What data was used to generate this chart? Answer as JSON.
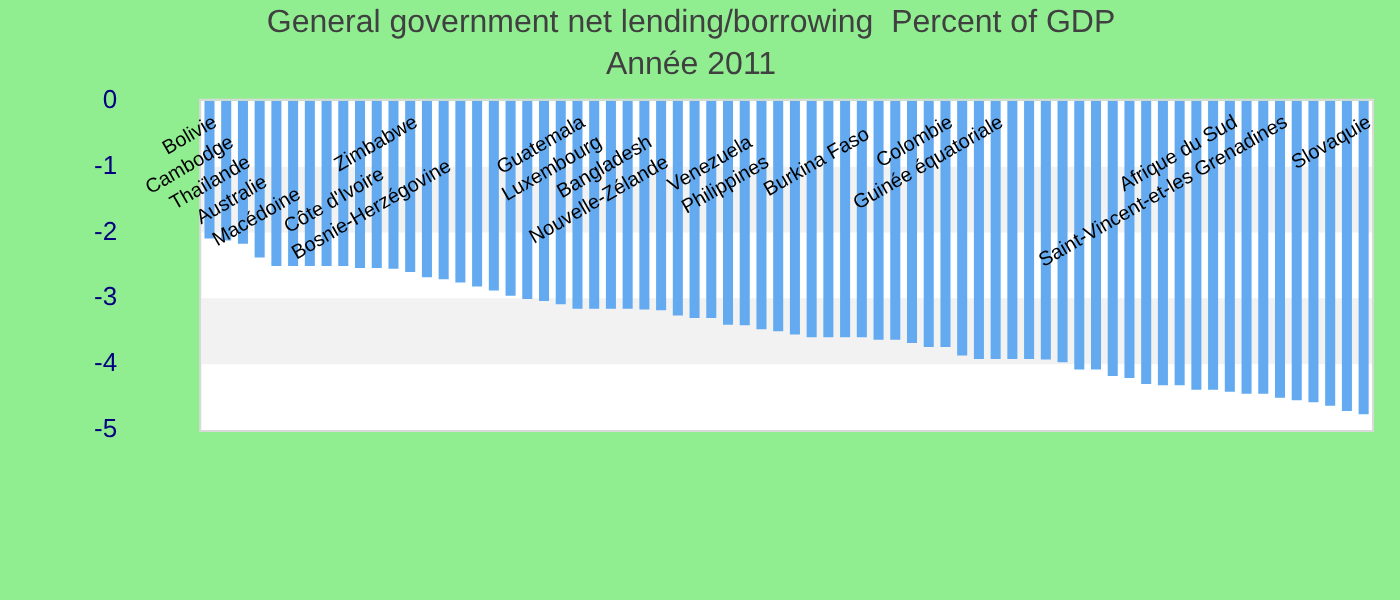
{
  "chart_data": {
    "type": "bar",
    "title": "General government net lending/borrowing  Percent of GDP",
    "subtitle": "Année 2011",
    "categories": [
      "Bolivie",
      "Cambodge",
      "Thaïlande",
      "Australie",
      null,
      "Macédoine",
      null,
      null,
      null,
      null,
      "Côte d'Ivoire",
      null,
      "Zimbabwe",
      null,
      "Bosnie-Herzégovine",
      null,
      null,
      null,
      null,
      null,
      null,
      null,
      "Guatemala",
      "Luxembourg",
      null,
      null,
      "Bangladesh",
      "Nouvelle-Zélande",
      null,
      null,
      null,
      null,
      "Venezuela",
      "Philippines",
      null,
      null,
      null,
      null,
      null,
      "Burkina Faso",
      null,
      null,
      null,
      null,
      "Colombie",
      null,
      null,
      "Guinée équatoriale",
      null,
      null,
      null,
      null,
      null,
      null,
      null,
      null,
      null,
      null,
      null,
      null,
      null,
      "Afrique du Sud",
      null,
      null,
      "Saint-Vincent-et-les Grenadines",
      null,
      null,
      null,
      null,
      "Slovaquie"
    ],
    "values": [
      -2.09,
      -2.12,
      -2.17,
      -2.38,
      -2.51,
      -2.51,
      -2.51,
      -2.51,
      -2.51,
      -2.54,
      -2.54,
      -2.55,
      -2.6,
      -2.68,
      -2.71,
      -2.76,
      -2.82,
      -2.88,
      -2.96,
      -3.01,
      -3.04,
      -3.09,
      -3.16,
      -3.16,
      -3.16,
      -3.16,
      -3.17,
      -3.18,
      -3.26,
      -3.3,
      -3.3,
      -3.4,
      -3.41,
      -3.47,
      -3.5,
      -3.55,
      -3.59,
      -3.59,
      -3.59,
      -3.59,
      -3.63,
      -3.63,
      -3.68,
      -3.74,
      -3.74,
      -3.87,
      -3.92,
      -3.92,
      -3.92,
      -3.92,
      -3.93,
      -3.97,
      -4.08,
      -4.08,
      -4.18,
      -4.21,
      -4.3,
      -4.32,
      -4.32,
      -4.39,
      -4.39,
      -4.42,
      -4.45,
      -4.45,
      -4.51,
      -4.55,
      -4.58,
      -4.63,
      -4.71,
      -4.76
    ],
    "color": "#63aaf0",
    "ylim": [
      -5,
      0
    ],
    "yticks": [
      -5,
      -4,
      -3,
      -2,
      -1,
      0
    ],
    "bands": [
      {
        "axis": "y",
        "from": -2,
        "to": -1,
        "color": "#f2f2f2"
      },
      {
        "axis": "y",
        "from": -4,
        "to": -3,
        "color": "#f2f2f2"
      }
    ]
  }
}
